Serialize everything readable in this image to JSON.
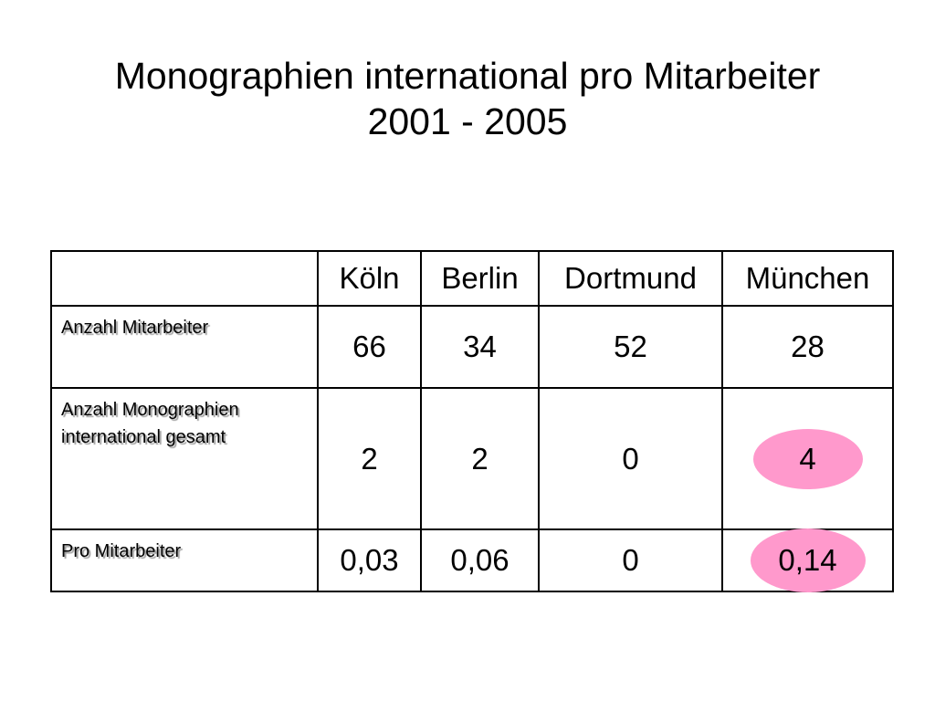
{
  "title": {
    "line1": "Monographien international pro Mitarbeiter",
    "line2": "2001 - 2005"
  },
  "table": {
    "columns": [
      "",
      "Köln",
      "Berlin",
      "Dortmund",
      "München"
    ],
    "rows": [
      {
        "label": "Anzahl Mitarbeiter",
        "values": [
          "66",
          "34",
          "52",
          "28"
        ]
      },
      {
        "label": "Anzahl Monographien international gesamt",
        "values": [
          "2",
          "2",
          "0",
          "4"
        ]
      },
      {
        "label": "Pro Mitarbeiter",
        "values": [
          "0,03",
          "0,06",
          "0",
          "0,14"
        ]
      }
    ]
  },
  "colors": {
    "highlight": "#ff99cc"
  }
}
